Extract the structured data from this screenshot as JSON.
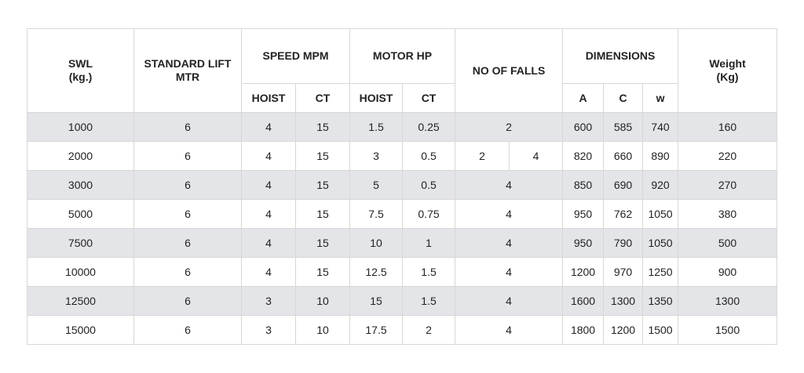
{
  "table": {
    "headers": {
      "swl": "SWL",
      "swl_unit": "(kg.)",
      "standard_lift": "STANDARD LIFT",
      "standard_lift_unit": "MTR",
      "speed": "SPEED MPM",
      "motor": "MOTOR HP",
      "falls": "NO OF FALLS",
      "dimensions": "DIMENSIONS",
      "weight": "Weight",
      "weight_unit": "(Kg)",
      "speed_hoist": "HOIST",
      "speed_ct": "CT",
      "motor_hoist": "HOIST",
      "motor_ct": "CT",
      "dim_a": "A",
      "dim_c": "C",
      "dim_w": "w"
    },
    "rows": [
      {
        "swl": "1000",
        "lift": "6",
        "speed_hoist": "4",
        "speed_ct": "15",
        "motor_hoist": "1.5",
        "motor_ct": "0.25",
        "falls": "2",
        "a": "600",
        "c": "585",
        "w": "740",
        "weight": "160"
      },
      {
        "swl": "2000",
        "lift": "6",
        "speed_hoist": "4",
        "speed_ct": "15",
        "motor_hoist": "3",
        "motor_ct": "0.5",
        "falls_1": "2",
        "falls_2": "4",
        "a": "820",
        "c": "660",
        "w": "890",
        "weight": "220"
      },
      {
        "swl": "3000",
        "lift": "6",
        "speed_hoist": "4",
        "speed_ct": "15",
        "motor_hoist": "5",
        "motor_ct": "0.5",
        "falls": "4",
        "a": "850",
        "c": "690",
        "w": "920",
        "weight": "270"
      },
      {
        "swl": "5000",
        "lift": "6",
        "speed_hoist": "4",
        "speed_ct": "15",
        "motor_hoist": "7.5",
        "motor_ct": "0.75",
        "falls": "4",
        "a": "950",
        "c": "762",
        "w": "1050",
        "weight": "380"
      },
      {
        "swl": "7500",
        "lift": "6",
        "speed_hoist": "4",
        "speed_ct": "15",
        "motor_hoist": "10",
        "motor_ct": "1",
        "falls": "4",
        "a": "950",
        "c": "790",
        "w": "1050",
        "weight": "500"
      },
      {
        "swl": "10000",
        "lift": "6",
        "speed_hoist": "4",
        "speed_ct": "15",
        "motor_hoist": "12.5",
        "motor_ct": "1.5",
        "falls": "4",
        "a": "1200",
        "c": "970",
        "w": "1250",
        "weight": "900"
      },
      {
        "swl": "12500",
        "lift": "6",
        "speed_hoist": "3",
        "speed_ct": "10",
        "motor_hoist": "15",
        "motor_ct": "1.5",
        "falls": "4",
        "a": "1600",
        "c": "1300",
        "w": "1350",
        "weight": "1300"
      },
      {
        "swl": "15000",
        "lift": "6",
        "speed_hoist": "3",
        "speed_ct": "10",
        "motor_hoist": "17.5",
        "motor_ct": "2",
        "falls": "4",
        "a": "1800",
        "c": "1200",
        "w": "1500",
        "weight": "1500"
      }
    ]
  }
}
